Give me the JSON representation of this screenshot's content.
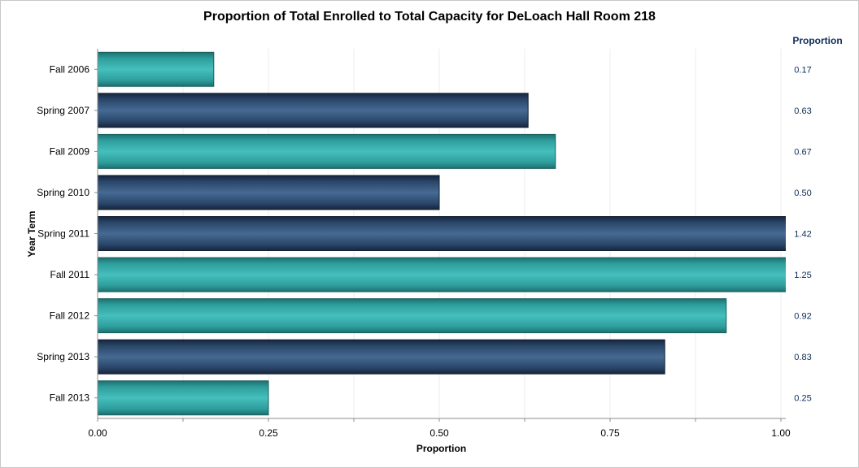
{
  "chart_data": {
    "type": "bar",
    "orientation": "horizontal",
    "title": "Proportion of Total Enrolled to Total Capacity for DeLoach Hall Room 218",
    "xlabel": "Proportion",
    "ylabel": "Year Term",
    "stat_column_header": "Proportion",
    "xlim": [
      0,
      1.0
    ],
    "xticks": [
      0,
      0.25,
      0.5,
      0.75,
      1.0
    ],
    "xtick_labels": [
      "0.00",
      "0.25",
      "0.50",
      "0.75",
      "1.00"
    ],
    "categories": [
      "Fall 2006",
      "Spring 2007",
      "Fall 2009",
      "Spring 2010",
      "Spring 2011",
      "Fall 2011",
      "Fall 2012",
      "Spring 2013",
      "Fall 2013"
    ],
    "values": [
      0.17,
      0.63,
      0.67,
      0.5,
      1.42,
      1.25,
      0.92,
      0.83,
      0.25
    ],
    "value_labels": [
      "0.17",
      "0.63",
      "0.67",
      "0.50",
      "1.42",
      "1.25",
      "0.92",
      "0.83",
      "0.25"
    ],
    "colors": {
      "fall": "#3aa8a8",
      "spring": "#2c4a70",
      "stat_text": "#0d2c58",
      "grid": "#ececec",
      "axis": "#8c8c8c"
    },
    "bar_color_group": [
      "fall",
      "spring",
      "fall",
      "spring",
      "spring",
      "fall",
      "fall",
      "spring",
      "fall"
    ],
    "grid": true
  }
}
